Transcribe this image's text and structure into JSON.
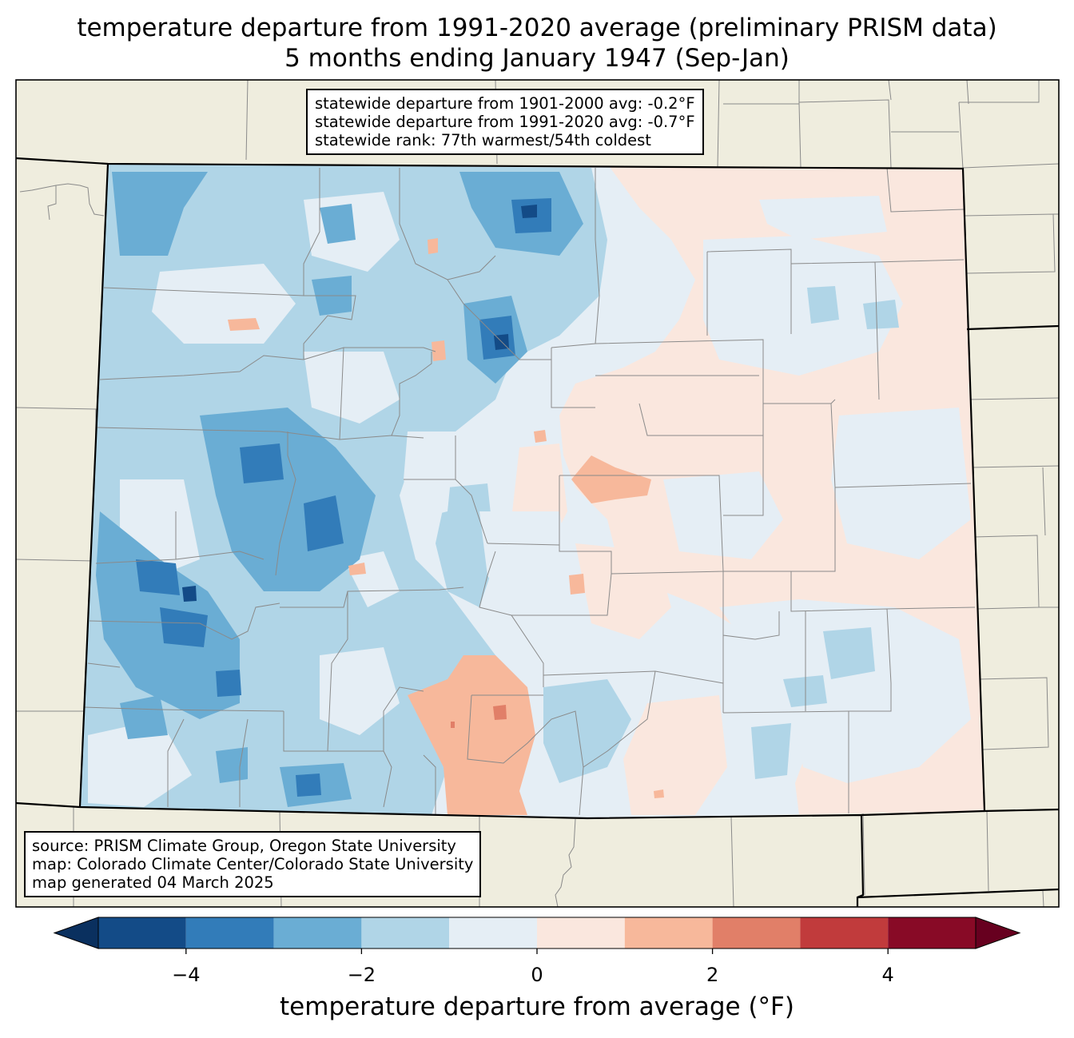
{
  "title": {
    "line1": "temperature departure from 1991-2020 average (preliminary PRISM data)",
    "line2": "5 months ending January 1947 (Sep-Jan)"
  },
  "stats": {
    "line1": "statewide departure from 1901-2000 avg: -0.2°F",
    "line2": "statewide departure from 1991-2020 avg: -0.7°F",
    "line3": "statewide rank: 77th warmest/54th coldest"
  },
  "source": {
    "line1": "source: PRISM Climate Group, Oregon State University",
    "line2": "map: Colorado Climate Center/Colorado State University",
    "line3": "map generated 04 March 2025"
  },
  "colorbar": {
    "label": "temperature departure from average (°F)",
    "min": -5,
    "max": 5,
    "ticks": [
      "−4",
      "−2",
      "0",
      "2",
      "4"
    ],
    "tick_values": [
      -4,
      -2,
      0,
      2,
      4
    ],
    "bins": [
      {
        "from": -5,
        "to": -4,
        "color": "#134b87"
      },
      {
        "from": -4,
        "to": -3,
        "color": "#327cb9"
      },
      {
        "from": -3,
        "to": -2,
        "color": "#6aadd4"
      },
      {
        "from": -2,
        "to": -1,
        "color": "#b0d5e7"
      },
      {
        "from": -1,
        "to": 0,
        "color": "#e5eef5"
      },
      {
        "from": 0,
        "to": 1,
        "color": "#fae7de"
      },
      {
        "from": 1,
        "to": 2,
        "color": "#f7b89b"
      },
      {
        "from": 2,
        "to": 3,
        "color": "#e17f68"
      },
      {
        "from": 3,
        "to": 4,
        "color": "#c13b3c"
      },
      {
        "from": 4,
        "to": 5,
        "color": "#880a26"
      }
    ],
    "under_color": "#0a305f",
    "over_color": "#67001f"
  },
  "map": {
    "background_color": "#efedde",
    "region": "Colorado"
  }
}
